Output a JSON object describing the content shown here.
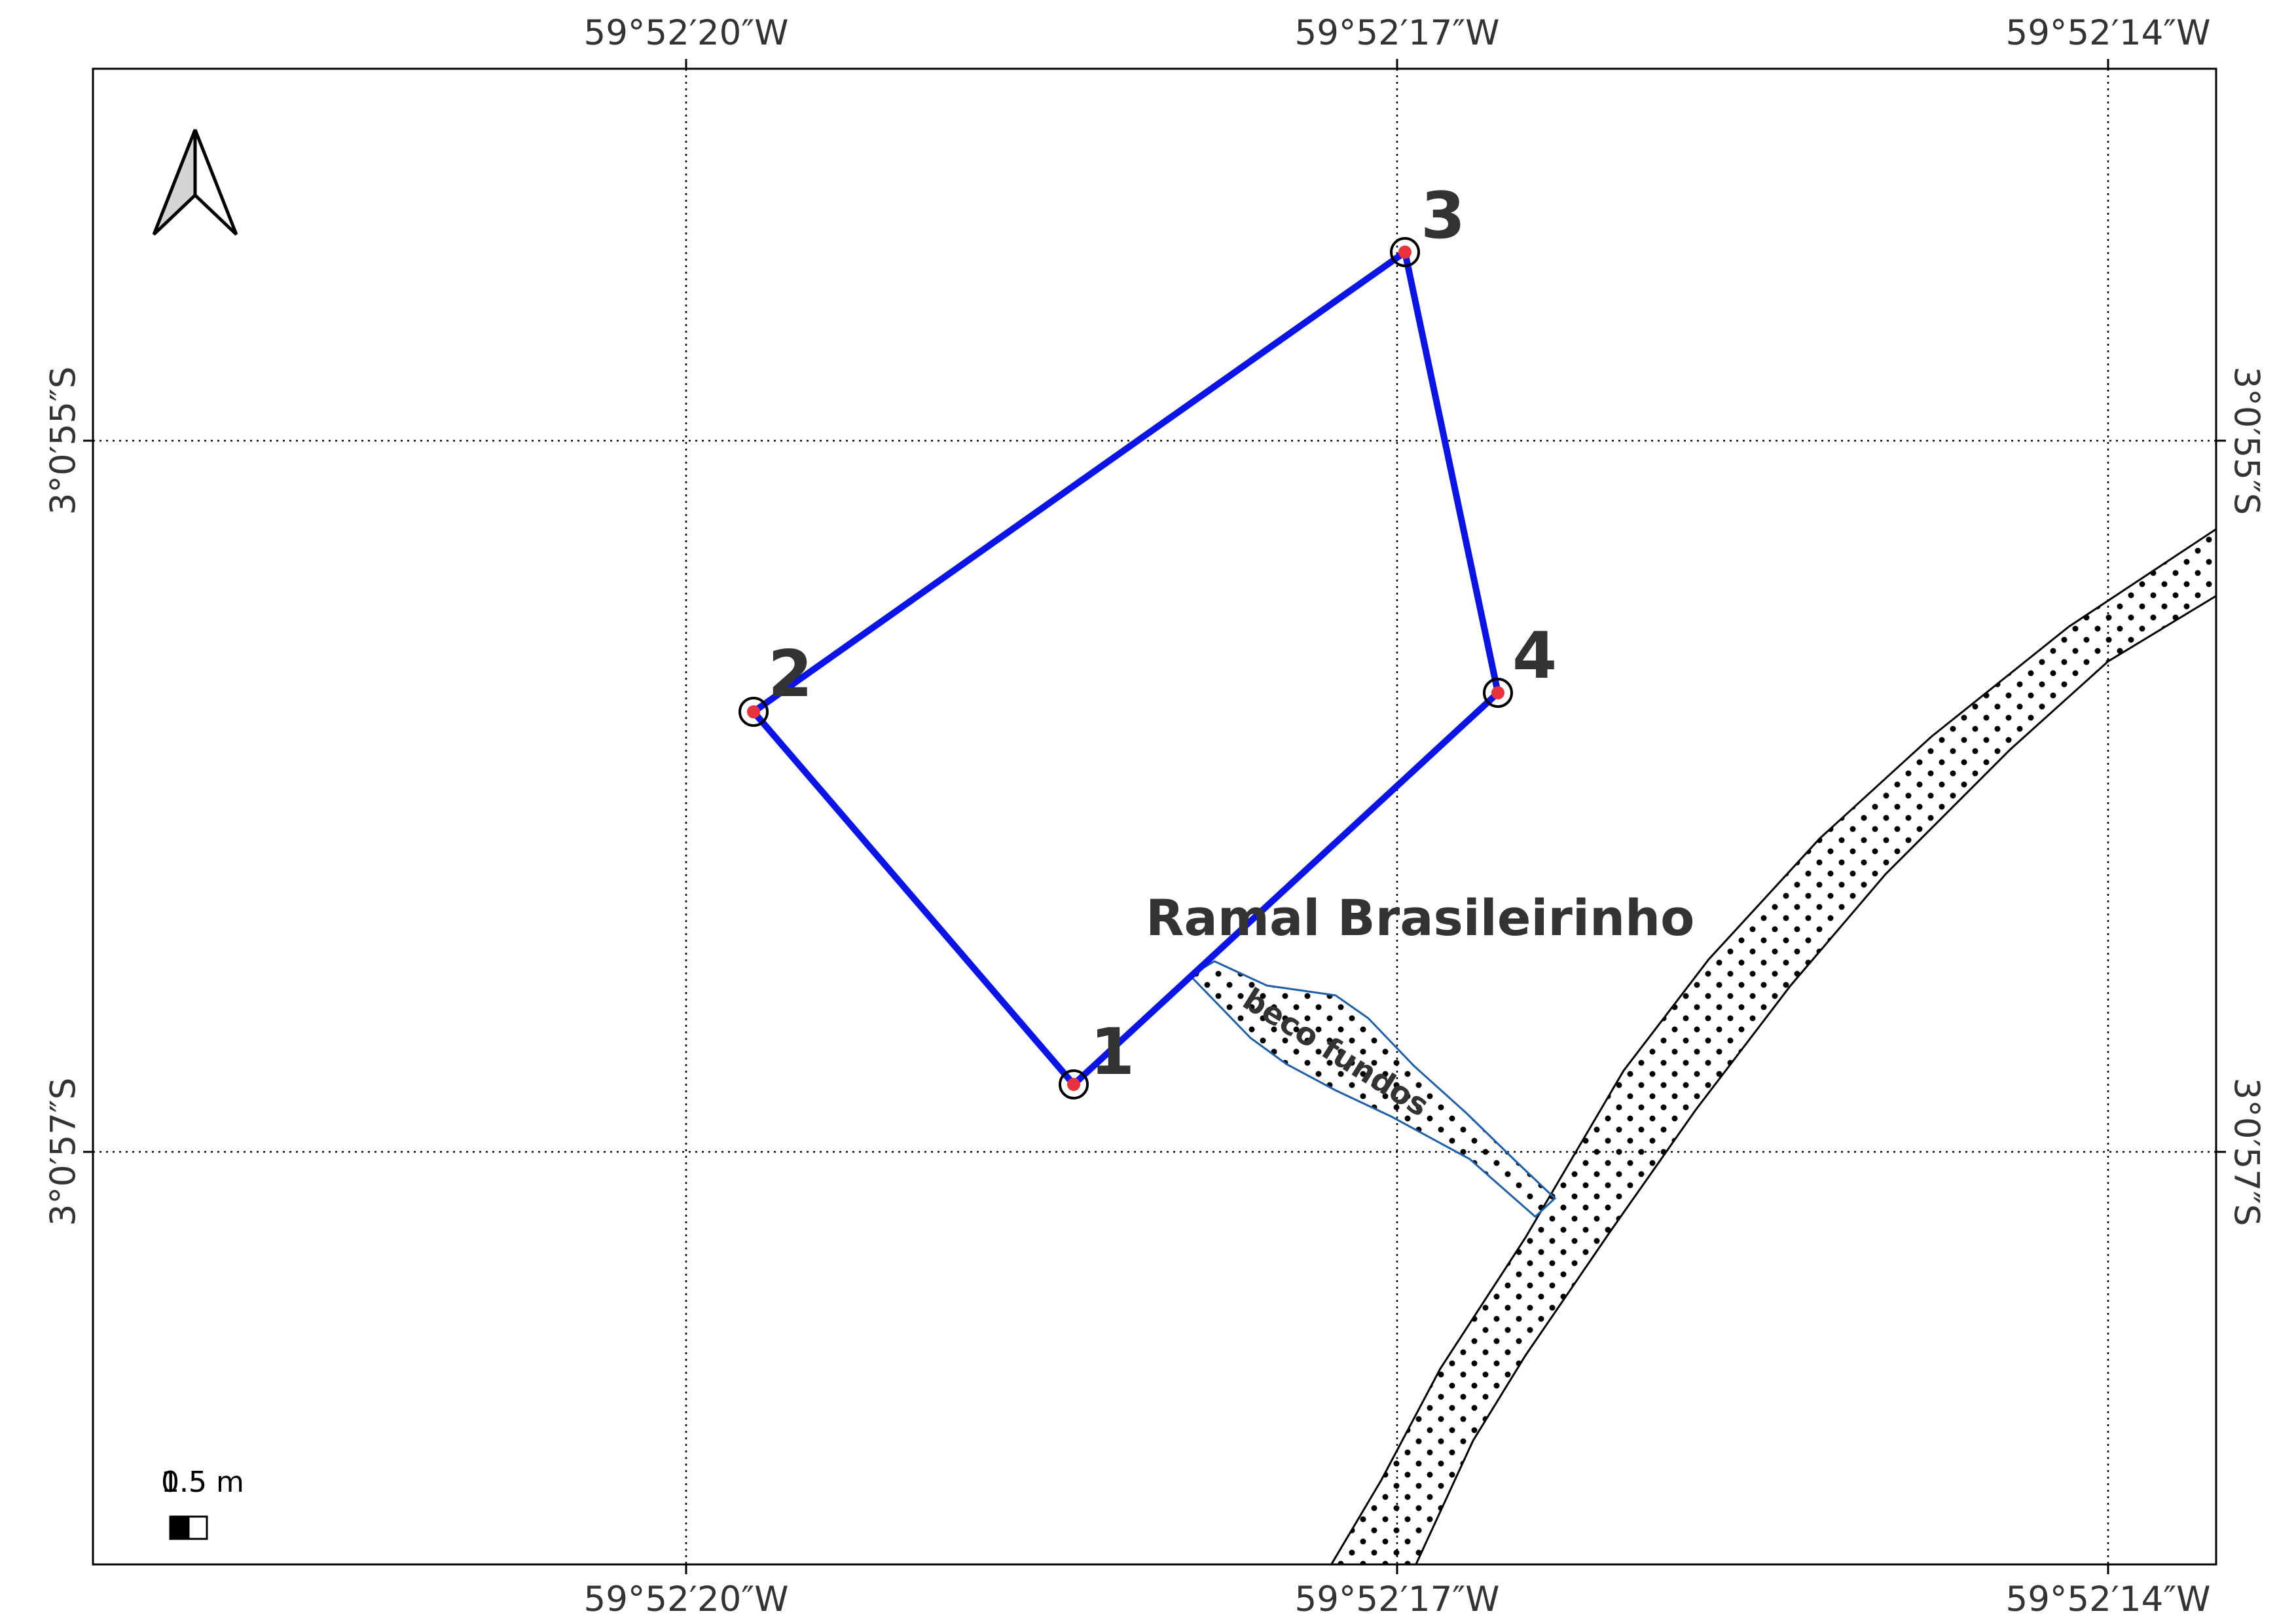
{
  "map": {
    "grid": {
      "longitude_labels": [
        "59°52′20″W",
        "59°52′17″W",
        "59°52′14″W"
      ],
      "latitude_labels": [
        "3°0′55″S",
        "3°0′57″S"
      ]
    },
    "vertices": [
      {
        "id": "1",
        "label": "1"
      },
      {
        "id": "2",
        "label": "2"
      },
      {
        "id": "3",
        "label": "3"
      },
      {
        "id": "4",
        "label": "4"
      }
    ],
    "roads": {
      "main_label": "Ramal Brasileirinho",
      "side_label": "beco fundos"
    },
    "scale_bar": {
      "label_back": "0.5",
      "label_front": "1.5 m"
    },
    "north_arrow": {
      "icon": "north-arrow-icon"
    },
    "colors": {
      "polygon": "#0a14e6",
      "vertex": "#e8323c",
      "side_road": "#1f5fa8"
    }
  }
}
